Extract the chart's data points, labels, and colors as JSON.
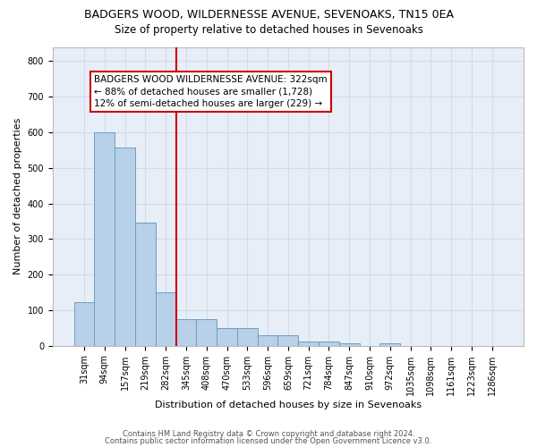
{
  "title1": "BADGERS WOOD, WILDERNESSE AVENUE, SEVENOAKS, TN15 0EA",
  "title2": "Size of property relative to detached houses in Sevenoaks",
  "xlabel": "Distribution of detached houses by size in Sevenoaks",
  "ylabel": "Number of detached properties",
  "categories": [
    "31sqm",
    "94sqm",
    "157sqm",
    "219sqm",
    "282sqm",
    "345sqm",
    "408sqm",
    "470sqm",
    "533sqm",
    "596sqm",
    "659sqm",
    "721sqm",
    "784sqm",
    "847sqm",
    "910sqm",
    "972sqm",
    "1035sqm",
    "1098sqm",
    "1161sqm",
    "1223sqm",
    "1286sqm"
  ],
  "values": [
    123,
    600,
    558,
    347,
    150,
    75,
    75,
    50,
    50,
    30,
    30,
    12,
    12,
    8,
    0,
    8,
    0,
    0,
    0,
    0,
    0
  ],
  "bar_color": "#b8d0e8",
  "bar_edge_color": "#6a9fc0",
  "grid_color": "#d0dcea",
  "background_color": "#e8eef8",
  "vline_x_index": 4,
  "vline_color": "#cc0000",
  "annotation_text": "BADGERS WOOD WILDERNESSE AVENUE: 322sqm\n← 88% of detached houses are smaller (1,728)\n12% of semi-detached houses are larger (229) →",
  "annotation_box_color": "#ffffff",
  "annotation_box_edge": "#cc0000",
  "footer1": "Contains HM Land Registry data © Crown copyright and database right 2024.",
  "footer2": "Contains public sector information licensed under the Open Government Licence v3.0.",
  "ylim": [
    0,
    840
  ],
  "title1_fontsize": 9,
  "title2_fontsize": 8.5,
  "xlabel_fontsize": 8,
  "ylabel_fontsize": 8,
  "tick_fontsize": 7,
  "footer_fontsize": 6
}
